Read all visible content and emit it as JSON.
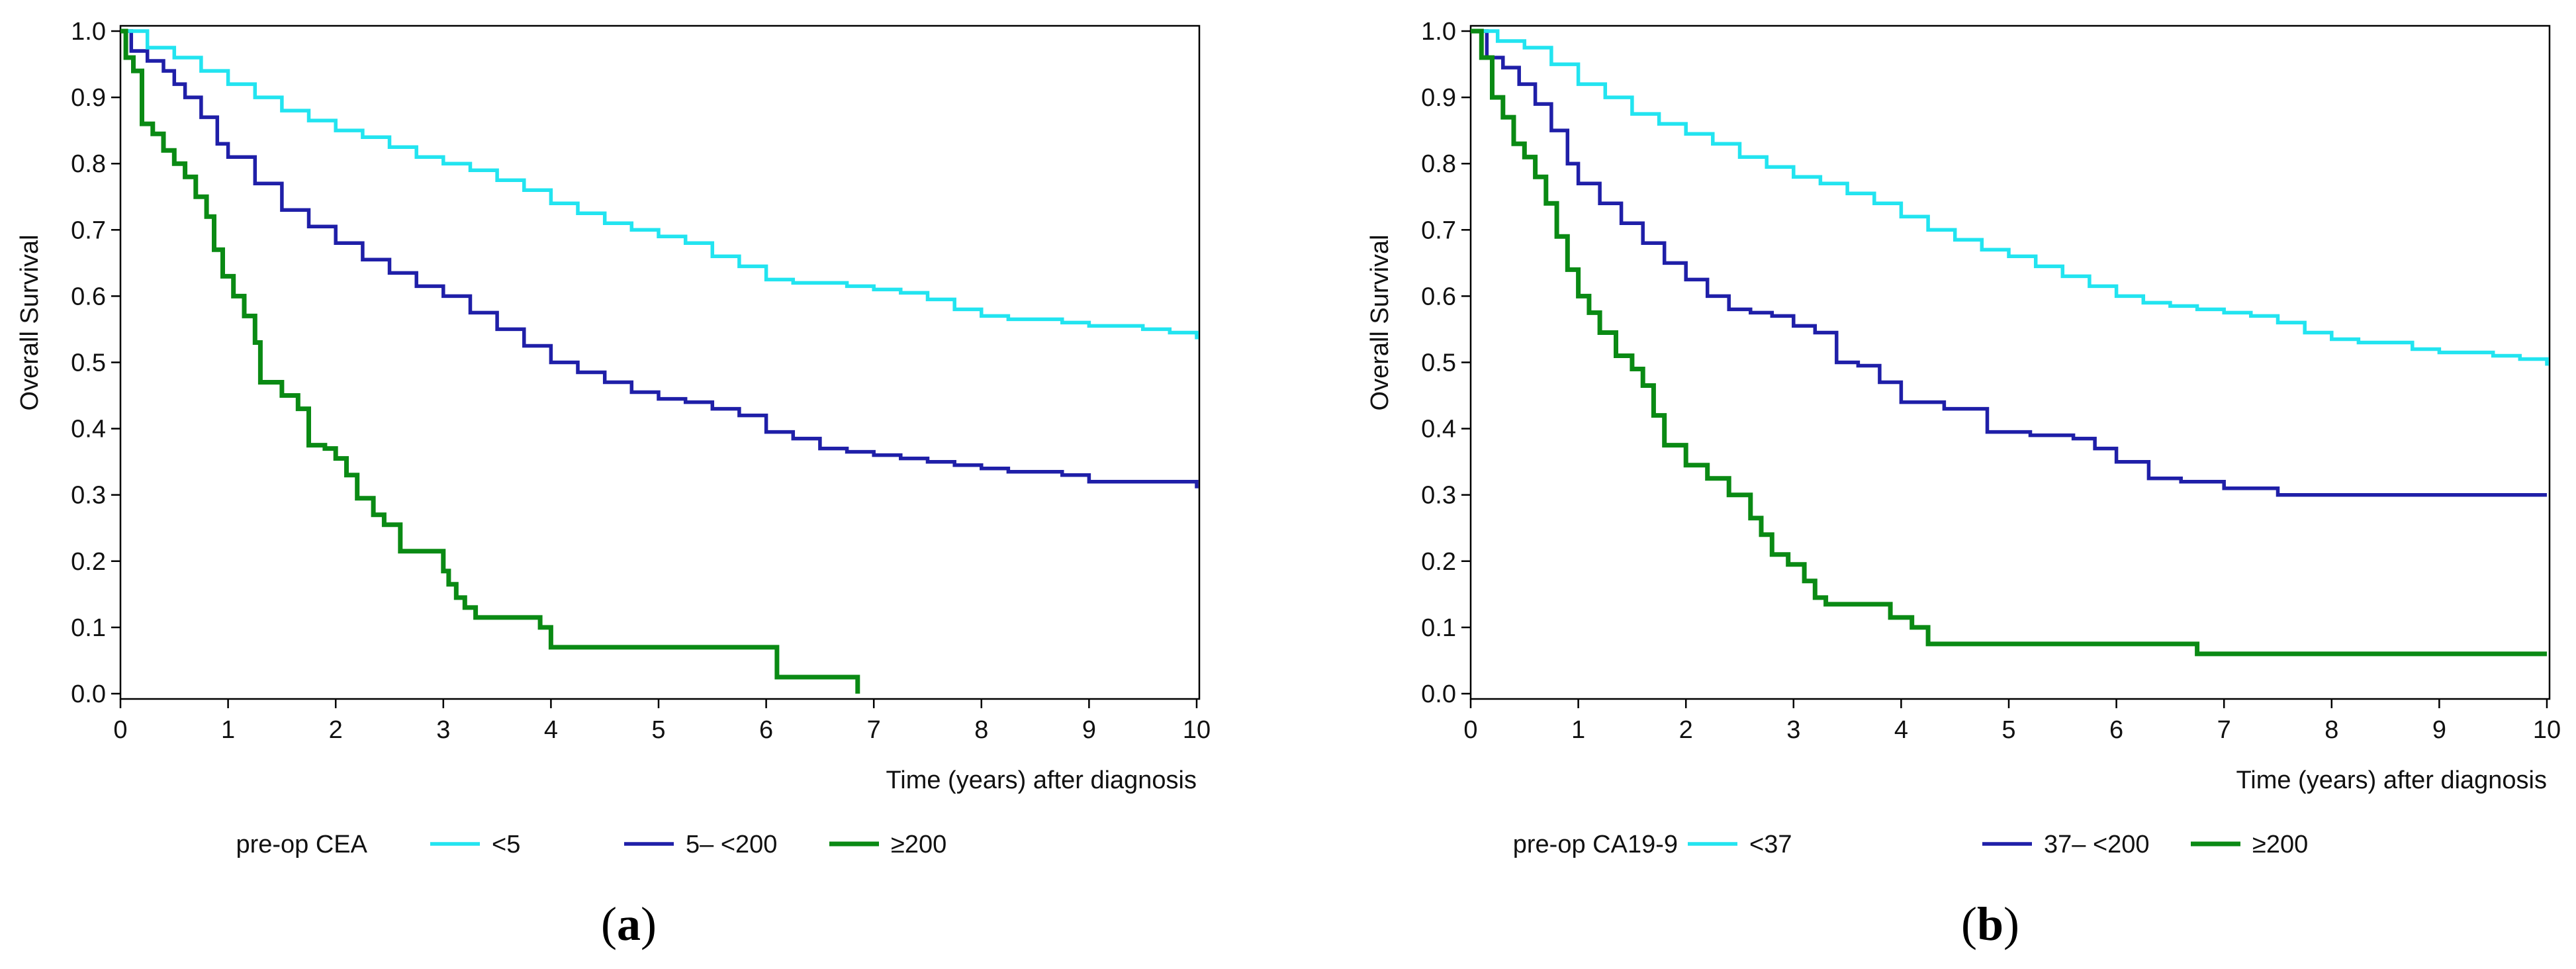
{
  "chart_data": [
    {
      "panel": "a",
      "type": "line",
      "step": true,
      "title": "",
      "xlabel": "Time (years) after diagnosis",
      "ylabel": "Overall Survival",
      "xlim": [
        0,
        10
      ],
      "ylim": [
        0,
        1
      ],
      "xticks": [
        "0",
        "1",
        "2",
        "3",
        "4",
        "5",
        "6",
        "7",
        "8",
        "9",
        "10"
      ],
      "yticks": [
        "0.0",
        "0.1",
        "0.2",
        "0.3",
        "0.4",
        "0.5",
        "0.6",
        "0.7",
        "0.8",
        "0.9",
        "1.0"
      ],
      "legend_title": "pre-op CEA",
      "series": [
        {
          "name": "<5",
          "color": "#22e4f0",
          "x": [
            0,
            0.25,
            0.5,
            0.75,
            1,
            1.25,
            1.5,
            1.75,
            2,
            2.25,
            2.5,
            2.75,
            3,
            3.25,
            3.5,
            3.75,
            4,
            4.25,
            4.5,
            4.75,
            5,
            5.25,
            5.5,
            5.75,
            6,
            6.25,
            6.5,
            6.75,
            7,
            7.25,
            7.5,
            7.75,
            8,
            8.25,
            8.5,
            8.75,
            9,
            9.25,
            9.5,
            9.75,
            10
          ],
          "y": [
            1.0,
            0.975,
            0.96,
            0.94,
            0.92,
            0.9,
            0.88,
            0.865,
            0.85,
            0.84,
            0.825,
            0.81,
            0.8,
            0.79,
            0.775,
            0.76,
            0.74,
            0.725,
            0.71,
            0.7,
            0.69,
            0.68,
            0.66,
            0.645,
            0.625,
            0.62,
            0.62,
            0.615,
            0.61,
            0.605,
            0.595,
            0.58,
            0.57,
            0.565,
            0.565,
            0.56,
            0.555,
            0.555,
            0.55,
            0.545,
            0.535
          ]
        },
        {
          "name": "5– <200",
          "color": "#1f1fa8",
          "x": [
            0,
            0.1,
            0.25,
            0.4,
            0.5,
            0.6,
            0.75,
            0.9,
            1,
            1.25,
            1.5,
            1.75,
            2,
            2.25,
            2.5,
            2.75,
            3,
            3.25,
            3.5,
            3.75,
            4,
            4.25,
            4.5,
            4.75,
            5,
            5.25,
            5.5,
            5.75,
            6,
            6.25,
            6.5,
            6.75,
            7,
            7.25,
            7.5,
            7.75,
            8,
            8.25,
            8.5,
            8.75,
            9,
            9.25,
            9.5,
            9.75,
            10
          ],
          "y": [
            1.0,
            0.97,
            0.955,
            0.94,
            0.92,
            0.9,
            0.87,
            0.83,
            0.81,
            0.77,
            0.73,
            0.705,
            0.68,
            0.655,
            0.635,
            0.615,
            0.6,
            0.575,
            0.55,
            0.525,
            0.5,
            0.485,
            0.47,
            0.455,
            0.445,
            0.44,
            0.43,
            0.42,
            0.395,
            0.385,
            0.37,
            0.365,
            0.36,
            0.355,
            0.35,
            0.345,
            0.34,
            0.335,
            0.335,
            0.33,
            0.32,
            0.32,
            0.32,
            0.32,
            0.31
          ]
        },
        {
          "name": "≥200",
          "color": "#0a8a14",
          "x": [
            0,
            0.05,
            0.12,
            0.2,
            0.3,
            0.4,
            0.5,
            0.6,
            0.7,
            0.8,
            0.87,
            0.95,
            1.05,
            1.15,
            1.25,
            1.3,
            1.5,
            1.65,
            1.75,
            1.9,
            2,
            2.1,
            2.2,
            2.35,
            2.45,
            2.6,
            3.0,
            3.05,
            3.12,
            3.2,
            3.3,
            3.6,
            3.9,
            4.0,
            4.5,
            5,
            5.5,
            6.0,
            6.1,
            6.5,
            6.85
          ],
          "y": [
            1.0,
            0.96,
            0.94,
            0.86,
            0.845,
            0.82,
            0.8,
            0.78,
            0.75,
            0.72,
            0.67,
            0.63,
            0.6,
            0.57,
            0.53,
            0.47,
            0.45,
            0.43,
            0.375,
            0.37,
            0.355,
            0.33,
            0.295,
            0.27,
            0.255,
            0.215,
            0.185,
            0.165,
            0.145,
            0.13,
            0.115,
            0.115,
            0.1,
            0.07,
            0.07,
            0.07,
            0.07,
            0.07,
            0.025,
            0.025,
            0.0
          ]
        }
      ]
    },
    {
      "panel": "b",
      "type": "line",
      "step": true,
      "title": "",
      "xlabel": "Time (years) after diagnosis",
      "ylabel": "Overall Survival",
      "xlim": [
        0,
        10
      ],
      "ylim": [
        0,
        1
      ],
      "xticks": [
        "0",
        "1",
        "2",
        "3",
        "4",
        "5",
        "6",
        "7",
        "8",
        "9",
        "10"
      ],
      "yticks": [
        "0.0",
        "0.1",
        "0.2",
        "0.3",
        "0.4",
        "0.5",
        "0.6",
        "0.7",
        "0.8",
        "0.9",
        "1.0"
      ],
      "legend_title": "pre-op CA19-9",
      "series": [
        {
          "name": "<37",
          "color": "#22e4f0",
          "x": [
            0,
            0.25,
            0.5,
            0.75,
            1,
            1.25,
            1.5,
            1.75,
            2,
            2.25,
            2.5,
            2.75,
            3,
            3.25,
            3.5,
            3.75,
            4,
            4.25,
            4.5,
            4.75,
            5,
            5.25,
            5.5,
            5.75,
            6,
            6.25,
            6.5,
            6.75,
            7,
            7.25,
            7.5,
            7.75,
            8,
            8.25,
            8.5,
            8.75,
            9,
            9.25,
            9.5,
            9.75,
            10
          ],
          "y": [
            1.0,
            0.985,
            0.975,
            0.95,
            0.92,
            0.9,
            0.875,
            0.86,
            0.845,
            0.83,
            0.81,
            0.795,
            0.78,
            0.77,
            0.755,
            0.74,
            0.72,
            0.7,
            0.685,
            0.67,
            0.66,
            0.645,
            0.63,
            0.615,
            0.6,
            0.59,
            0.585,
            0.58,
            0.575,
            0.57,
            0.56,
            0.545,
            0.535,
            0.53,
            0.53,
            0.52,
            0.515,
            0.515,
            0.51,
            0.505,
            0.495
          ]
        },
        {
          "name": "37– <200",
          "color": "#1f1fa8",
          "x": [
            0,
            0.15,
            0.3,
            0.45,
            0.6,
            0.75,
            0.9,
            1,
            1.2,
            1.4,
            1.6,
            1.8,
            2,
            2.2,
            2.4,
            2.6,
            2.8,
            3,
            3.2,
            3.4,
            3.6,
            3.8,
            4,
            4.4,
            4.8,
            5.2,
            5.6,
            5.8,
            6,
            6.3,
            6.6,
            7.0,
            7.3,
            7.5,
            8,
            9,
            10
          ],
          "y": [
            1.0,
            0.96,
            0.945,
            0.92,
            0.89,
            0.85,
            0.8,
            0.77,
            0.74,
            0.71,
            0.68,
            0.65,
            0.625,
            0.6,
            0.58,
            0.575,
            0.57,
            0.555,
            0.545,
            0.5,
            0.495,
            0.47,
            0.44,
            0.43,
            0.395,
            0.39,
            0.385,
            0.37,
            0.35,
            0.325,
            0.32,
            0.31,
            0.31,
            0.3,
            0.3,
            0.3,
            0.3
          ]
        },
        {
          "name": "≥200",
          "color": "#0a8a14",
          "x": [
            0,
            0.1,
            0.2,
            0.3,
            0.4,
            0.5,
            0.6,
            0.7,
            0.8,
            0.9,
            1.0,
            1.1,
            1.2,
            1.35,
            1.5,
            1.6,
            1.7,
            1.8,
            2.0,
            2.2,
            2.4,
            2.6,
            2.7,
            2.8,
            2.95,
            3.1,
            3.2,
            3.3,
            3.6,
            3.9,
            4.1,
            4.25,
            5,
            6,
            6.7,
            6.75,
            7,
            8,
            9,
            10
          ],
          "y": [
            1.0,
            0.96,
            0.9,
            0.87,
            0.83,
            0.81,
            0.78,
            0.74,
            0.69,
            0.64,
            0.6,
            0.575,
            0.545,
            0.51,
            0.49,
            0.465,
            0.42,
            0.375,
            0.345,
            0.325,
            0.3,
            0.265,
            0.24,
            0.21,
            0.195,
            0.17,
            0.145,
            0.135,
            0.135,
            0.115,
            0.1,
            0.075,
            0.075,
            0.075,
            0.075,
            0.06,
            0.06,
            0.06,
            0.06,
            0.06
          ]
        }
      ]
    }
  ],
  "captions": {
    "panel_a": {
      "open": "(",
      "letter": "a",
      "close": ")"
    },
    "panel_b": {
      "open": "(",
      "letter": "b",
      "close": ")"
    }
  }
}
